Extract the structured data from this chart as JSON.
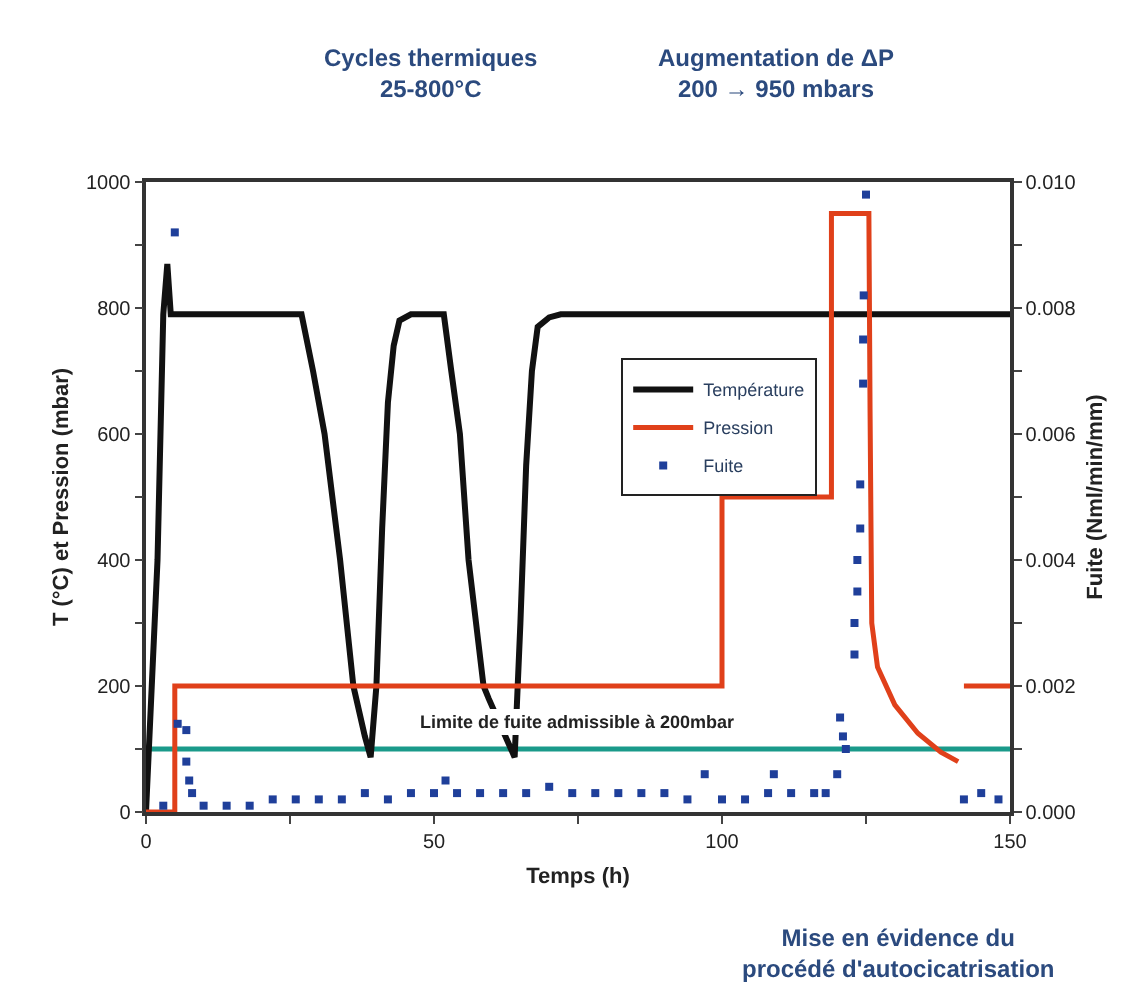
{
  "chart_data": {
    "type": "line",
    "xlabel": "Temps (h)",
    "ylabel": "T (°C) et Pression (mbar)",
    "y2label": "Fuite (Nml/min/mm)",
    "xlim": [
      0,
      150
    ],
    "xticks": [
      0,
      {
        "value": 25,
        "label": null
      },
      50,
      {
        "value": 75,
        "label": null
      },
      100,
      {
        "value": 125,
        "label": null
      },
      150
    ],
    "ylim": [
      0,
      1000
    ],
    "yticks": [
      0,
      {
        "value": 100,
        "label": null
      },
      200,
      {
        "value": 300,
        "label": null
      },
      400,
      {
        "value": 500,
        "label": null
      },
      600,
      {
        "value": 700,
        "label": null
      },
      800,
      {
        "value": 900,
        "label": null
      },
      1000
    ],
    "y2lim": [
      0,
      0.01
    ],
    "y2ticks": [
      {
        "value": 0,
        "label": "0.000"
      },
      {
        "value": 0.001,
        "label": null
      },
      {
        "value": 0.002,
        "label": "0.002"
      },
      {
        "value": 0.003,
        "label": null
      },
      {
        "value": 0.004,
        "label": "0.004"
      },
      {
        "value": 0.005,
        "label": null
      },
      {
        "value": 0.006,
        "label": "0.006"
      },
      {
        "value": 0.007,
        "label": null
      },
      {
        "value": 0.008,
        "label": "0.008"
      },
      {
        "value": 0.009,
        "label": null
      },
      {
        "value": 0.01,
        "label": "0.010"
      }
    ],
    "legend": "right",
    "series": [
      {
        "name": "Température",
        "color": "#111111",
        "x": [
          0,
          2,
          3,
          3.7,
          4.3,
          5,
          27,
          29,
          31,
          33.7,
          36,
          38,
          39,
          40,
          41,
          42,
          43,
          44,
          46,
          51.7,
          53,
          54.5,
          56,
          58.6,
          59.5,
          64,
          65,
          66,
          67,
          68,
          70,
          72,
          150
        ],
        "values": [
          0,
          400,
          790,
          870,
          790,
          790,
          790,
          700,
          600,
          400,
          200,
          120,
          87,
          200,
          450,
          650,
          740,
          780,
          790,
          790,
          700,
          600,
          400,
          200,
          180,
          87,
          300,
          550,
          700,
          770,
          785,
          790,
          790
        ]
      },
      {
        "name": "Pression",
        "color": "#e0401a",
        "x": [
          0,
          5,
          5,
          100,
          100,
          119,
          119,
          125.5,
          125.7,
          126,
          127,
          130,
          134,
          138,
          141,
          141.5,
          142,
          150
        ],
        "values": [
          0,
          0,
          200,
          200,
          500,
          500,
          950,
          950,
          640,
          300,
          230,
          170,
          125,
          95,
          80,
          null,
          200,
          200
        ]
      },
      {
        "name": "Fuite",
        "type": "scatter",
        "axis": "y2",
        "color": "#1f3f9a",
        "x": [
          3,
          5,
          5.5,
          7,
          7,
          7.5,
          8,
          10,
          14,
          18,
          22,
          26,
          30,
          34,
          38,
          42,
          46,
          50,
          52,
          54,
          58,
          62,
          66,
          70,
          74,
          78,
          82,
          86,
          90,
          94,
          97,
          100,
          104,
          108,
          109,
          112,
          116,
          118,
          120,
          120.5,
          121,
          121.5,
          123,
          123,
          123.5,
          123.5,
          124,
          124,
          124.5,
          124.5,
          124.6,
          125,
          142,
          145,
          148
        ],
        "values": [
          0.0001,
          0.0092,
          0.0014,
          0.0013,
          0.0008,
          0.0005,
          0.0003,
          0.0001,
          0.0001,
          0.0001,
          0.0002,
          0.0002,
          0.0002,
          0.0002,
          0.0003,
          0.0002,
          0.0003,
          0.0003,
          0.0005,
          0.0003,
          0.0003,
          0.0003,
          0.0003,
          0.0004,
          0.0003,
          0.0003,
          0.0003,
          0.0003,
          0.0003,
          0.0002,
          0.0006,
          0.0002,
          0.0002,
          0.0003,
          0.0006,
          0.0003,
          0.0003,
          0.0003,
          0.0006,
          0.0015,
          0.0012,
          0.001,
          0.0025,
          0.003,
          0.0035,
          0.004,
          0.0045,
          0.0052,
          0.0068,
          0.0075,
          0.0082,
          0.0098,
          0.0002,
          0.0003,
          0.0002
        ]
      }
    ],
    "ref_lines": [
      {
        "axis": "y",
        "value": 100,
        "label": "Limite de fuite admissible à 200mbar",
        "color": "#1a9a8a"
      }
    ],
    "annotations": [
      "Cycles thermiques\n25-800°C",
      "Augmentation de ΔP\n200 → 950 mbars",
      "Mise en évidence du\nprocédé d'autocicatrisation"
    ]
  }
}
